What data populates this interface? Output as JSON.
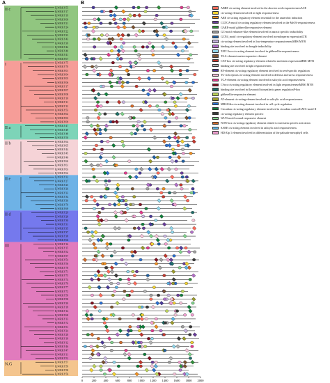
{
  "panels": {
    "a": "A",
    "b": "B"
  },
  "clades": [
    {
      "id": "IIc",
      "label": "II c",
      "color": "#76b860",
      "genes": [
        "EjWRKY55",
        "EjWRKY17",
        "EjWRKY19",
        "EjWRKY09",
        "EjWRKY21",
        "EjWRKY24",
        "EjWRKY22",
        "EjWRKY23",
        "EjWRKY43",
        "EjWRKY39",
        "EjWRKY42",
        "EjWRKY40",
        "EjWRKY41",
        "EjWRKY67"
      ]
    },
    {
      "id": "I",
      "label": "I",
      "color": "#f4857e",
      "genes": [
        "EjWRKY75",
        "EjWRKY70",
        "EjWRKY01",
        "EjWRKY04",
        "EjWRKY05",
        "EjWRKY06",
        "EjWRKY17",
        "EjWRKY07",
        "EjWRKY08",
        "EjWRKY10",
        "EjWRKY11",
        "EjWRKY12",
        "EjWRKY53",
        "EjWRKY02",
        "EjWRKY03",
        "EjWRKY09"
      ]
    },
    {
      "id": "IIa",
      "label": "II a",
      "color": "#5cc9a6",
      "genes": [
        "EjWRKY47",
        "EjWRKY49",
        "EjWRKY48",
        "EjWRKY50"
      ]
    },
    {
      "id": "IIb",
      "label": "II b",
      "color": "#f3c8cd",
      "genes": [
        "EjWRKY64",
        "EjWRKY65",
        "EjWRKY44",
        "EjWRKY45",
        "EjWRKY46",
        "EjWRKY60",
        "EjWRKY61",
        "EjWRKY63",
        "EjWRKY62"
      ]
    },
    {
      "id": "IIe",
      "label": "II e",
      "color": "#4a9fe0",
      "genes": [
        "EjWRKY32",
        "EjWRKY27",
        "EjWRKY25",
        "EjWRKY26",
        "EjWRKY33",
        "EjWRKY34",
        "EjWRKY36",
        "EjWRKY70",
        "EjWRKY69"
      ]
    },
    {
      "id": "IId",
      "label": "II d",
      "color": "#5357e8",
      "genes": [
        "EjWRKY29",
        "EjWRKY28",
        "EjWRKY30",
        "EjWRKY31",
        "EjWRKY35",
        "EjWRKY37",
        "EjWRKY38",
        "EjWRKY66"
      ]
    },
    {
      "id": "III",
      "label": "III",
      "color": "#d95aad",
      "genes": [
        "EjWRKY16",
        "EjWRKY15",
        "EjWRKY52",
        "EjWRKY57",
        "EjWRKY54",
        "EjWRKY56",
        "EjWRKY78",
        "EjWRKY71",
        "EjWRKY73",
        "EjWRKY74",
        "EjWRKY76",
        "EjWRKY77",
        "EjWRKY72",
        "EjWRKY59",
        "EjWRKY58",
        "EjWRKY20",
        "EjWRKY18",
        "EjWRKY14",
        "EjWRKY68",
        "EjWRKY13",
        "EjWRKY72",
        "EjWRKY51",
        "EjWRKY24",
        "EjWRKY28",
        "EjWRKY18",
        "EjWRKY12",
        "EjWRKY46",
        "EjWRKY47",
        "EjWRKY11",
        "EjWRKY52"
      ]
    },
    {
      "id": "NG",
      "label": "N.G",
      "color": "#f1b672",
      "genes": [
        "EjWRKY57",
        "EjWRKY59",
        "EjWRKY58",
        "EjWRKY56"
      ]
    }
  ],
  "axis": {
    "ticks": [
      "0",
      "200",
      "400",
      "600",
      "800",
      "1000",
      "1200",
      "1400",
      "1600",
      "1800",
      "2000"
    ],
    "max": 2000
  },
  "legend": [
    {
      "color": "#ff6b5a",
      "text": "ABRE  cis-acting element involved in the abscisic acid responsivenessACE"
    },
    {
      "color": "#f2d230",
      "text": "cis-acting element involved in light responsiveness"
    },
    {
      "color": "#ef8e1f",
      "text": "ARE  cis-acting regulatory element essential for the anaerobic induction"
    },
    {
      "color": "#6a3d9a",
      "text": "CGTCA-motif  cis-acting regulatory element involved in the MeJA-responsiveness"
    },
    {
      "color": "#2f8f3a",
      "text": "GARE-motif  gibberellin-responsive element"
    },
    {
      "color": "#9e9e9e",
      "text": "GC-motif  enhancer-like element involved in anoxic specific inducibility"
    },
    {
      "color": "#1f5fa0",
      "text": "GCN4_motif  cis-regulatory element involved in endosperm expressionLTR"
    },
    {
      "color": "#c8b4e0",
      "text": "cis-acting element involved in low-temperature responsivenessMBS  MYB"
    },
    {
      "color": "#b26fc8",
      "text": "binding site involved in drought-inducibility"
    },
    {
      "color": "#8fd4e8",
      "text": "TATC-box  cis-acting element involved in gibberellin-responsiveness"
    },
    {
      "color": "#7a5230",
      "text": "TGA-element  auxin-responsive element"
    },
    {
      "color": "#c0362c",
      "text": "CAT-box  cis-acting regulatory element related to meristem expressionMRE  MYB"
    },
    {
      "color": "#b0b0b0",
      "text": "binding site involved in light responsiveness"
    },
    {
      "color": "#4a3a9a",
      "text": "RY-element  cis-acting regulatory element involved in seed-specific regulation"
    },
    {
      "color": "#f3c1d6",
      "text": "TC-rich repeats  cis-acting element involved in defense and stress responsiveness"
    },
    {
      "color": "#e03a8c",
      "text": "TCA-element  cis-acting element involved in salicylic acid responsiveness"
    },
    {
      "color": "#7f1020",
      "text": "C-box  cis-acting regulatory element involved in light responsivenessMBSI  MYB"
    },
    {
      "color": "#1f6f6a",
      "text": "binding site involved in flavonoid biosynthetic genes regulationP-box"
    },
    {
      "color": "#bcd45a",
      "text": "gibberellin-responsive element"
    },
    {
      "color": "#9a9a2a",
      "text": "AT-element  cis-acting element involved in salicylic acid responsiveness"
    },
    {
      "color": "#2a6fd0",
      "text": "MBSI-like  cis-acting element involved in cell cycle regulation"
    },
    {
      "color": "#10803c",
      "text": "Circadian  cis-acting regulatory element involved in circadian controlGATA-motif II"
    },
    {
      "color": "#3a3a3a",
      "text": "cis-acting regulatory element specific"
    },
    {
      "color": "#7fd08a",
      "text": "WUN-motif  wound-responsive element"
    },
    {
      "color": "#d06a2a",
      "text": "NON-box  cis-acting regulatory element related to meristem specific activation"
    },
    {
      "color": "#5ab0e0",
      "text": "SARE  cis-acting element involved in salicylic acid responsiveness"
    },
    {
      "color": "#f0a0d0",
      "text": "HD-Zip 1  element involved in differentiation of the palisade mesophyll cells"
    }
  ]
}
